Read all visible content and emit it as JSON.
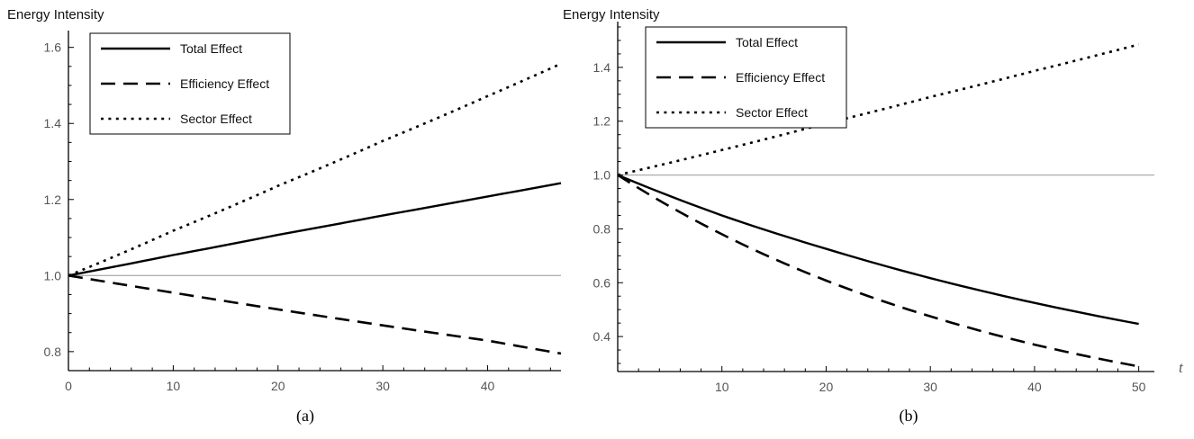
{
  "chart_data": [
    {
      "type": "line",
      "caption": "(a)",
      "ylabel": "Energy Intensity",
      "xlabel": "",
      "xlim": [
        0,
        47
      ],
      "ylim": [
        0.75,
        1.63
      ],
      "x_ticks": [
        0,
        10,
        20,
        30,
        40
      ],
      "x_tick_labels": [
        "0",
        "10",
        "20",
        "30",
        "40"
      ],
      "y_ticks": [
        0.8,
        1.0,
        1.2,
        1.4,
        1.6
      ],
      "y_tick_labels": [
        "0.8",
        "1.0",
        "1.2",
        "1.4",
        "1.6"
      ],
      "reference_line": 1.0,
      "legend_position": "top-left",
      "series": [
        {
          "name": "Total Effect",
          "style": "solid",
          "x": [
            0,
            10,
            20,
            30,
            40,
            47
          ],
          "y": [
            1.0,
            1.054,
            1.107,
            1.158,
            1.208,
            1.243
          ]
        },
        {
          "name": "Efficiency Effect",
          "style": "dashed",
          "x": [
            0,
            10,
            20,
            30,
            40,
            47
          ],
          "y": [
            1.0,
            0.955,
            0.911,
            0.869,
            0.829,
            0.795
          ]
        },
        {
          "name": "Sector Effect",
          "style": "dotted",
          "x": [
            0,
            10,
            20,
            30,
            40,
            47
          ],
          "y": [
            1.0,
            1.118,
            1.236,
            1.354,
            1.472,
            1.557
          ]
        }
      ]
    },
    {
      "type": "line",
      "caption": "(b)",
      "ylabel": "Energy Intensity",
      "xlabel": "t",
      "xlim": [
        0,
        51.5
      ],
      "ylim": [
        0.27,
        1.55
      ],
      "x_ticks": [
        10,
        20,
        30,
        40,
        50
      ],
      "x_tick_labels": [
        "10",
        "20",
        "30",
        "40",
        "50"
      ],
      "y_ticks": [
        0.4,
        0.6,
        0.8,
        1.0,
        1.2,
        1.4
      ],
      "y_tick_labels": [
        "0.4",
        "0.6",
        "0.8",
        "1.0",
        "1.2",
        "1.4"
      ],
      "reference_line": 1.0,
      "legend_position": "top-left",
      "series": [
        {
          "name": "Total Effect",
          "style": "solid",
          "x": [
            0,
            10,
            20,
            30,
            40,
            50
          ],
          "y": [
            1.0,
            0.85,
            0.726,
            0.617,
            0.525,
            0.447
          ]
        },
        {
          "name": "Efficiency Effect",
          "style": "dashed",
          "x": [
            0,
            10,
            20,
            30,
            40,
            50
          ],
          "y": [
            1.0,
            0.78,
            0.608,
            0.475,
            0.37,
            0.289
          ]
        },
        {
          "name": "Sector Effect",
          "style": "dotted",
          "x": [
            0,
            10,
            20,
            30,
            40,
            50
          ],
          "y": [
            1.0,
            1.093,
            1.192,
            1.29,
            1.387,
            1.485
          ]
        }
      ]
    }
  ]
}
